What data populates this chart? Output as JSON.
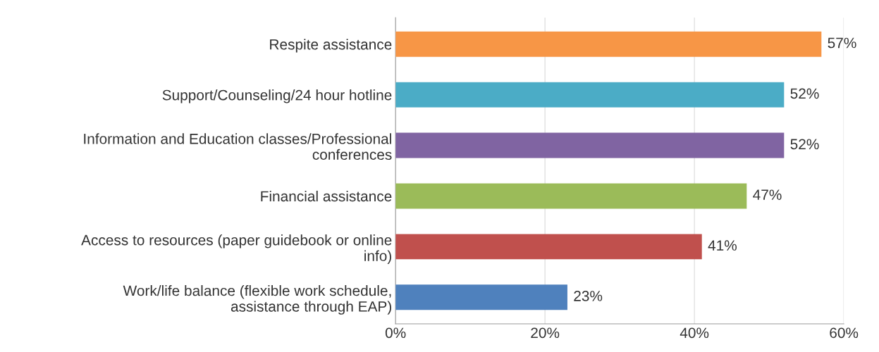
{
  "chart_data": {
    "type": "bar",
    "orientation": "horizontal",
    "categories": [
      "Respite assistance",
      "Support/Counseling/24 hour hotline",
      "Information and Education classes/Professional\nconferences",
      "Financial assistance",
      "Access to resources (paper guidebook or online\ninfo)",
      "Work/life balance (flexible work schedule,\nassistance through EAP)"
    ],
    "values": [
      57,
      52,
      52,
      47,
      41,
      23
    ],
    "colors": [
      "#f79646",
      "#4bacc6",
      "#8064a2",
      "#9bbb59",
      "#c0504d",
      "#4f81bd"
    ],
    "value_labels": [
      "57%",
      "52%",
      "52%",
      "47%",
      "41%",
      "23%"
    ],
    "xlim": [
      0,
      60
    ],
    "xticks": [
      {
        "value": 0,
        "label": "0%"
      },
      {
        "value": 20,
        "label": "20%"
      },
      {
        "value": 40,
        "label": "40%"
      },
      {
        "value": 60,
        "label": "60%"
      }
    ],
    "grid": "x",
    "legend": false
  }
}
